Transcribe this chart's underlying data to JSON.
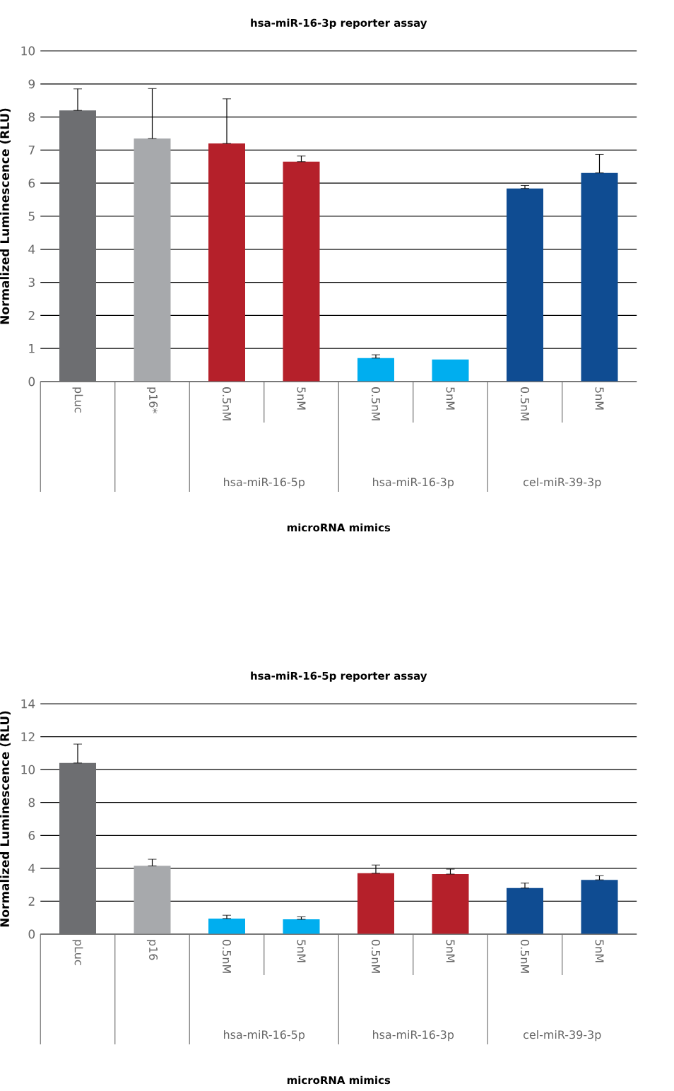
{
  "chart_data": [
    {
      "type": "bar",
      "title": "hsa-miR-16-3p reporter assay",
      "ylabel": "Normalized Luminescence (RLU)",
      "xlabel": "microRNA mimics",
      "categories": [
        "pLuc",
        "p16*",
        "0.5nM",
        "5nM",
        "0.5nM",
        "5nM",
        "0.5nM",
        "5nM"
      ],
      "values": [
        8.2,
        7.35,
        7.2,
        6.65,
        0.71,
        0.67,
        5.84,
        6.31
      ],
      "errors": [
        [
          8.2,
          8.85
        ],
        [
          7.35,
          8.86
        ],
        [
          7.2,
          8.55
        ],
        [
          6.65,
          6.82
        ],
        [
          0.71,
          0.81
        ],
        null,
        [
          5.84,
          5.93
        ],
        [
          6.31,
          6.87
        ]
      ],
      "colors": [
        "#6d6e71",
        "#a7a9ac",
        "#b5202a",
        "#b5202a",
        "#00aeef",
        "#00aeef",
        "#0f4c92",
        "#0f4c92"
      ],
      "ylim": [
        0,
        10
      ],
      "yticks": [
        0,
        1,
        2,
        3,
        4,
        5,
        6,
        7,
        8,
        9,
        10
      ],
      "grid": "y",
      "annotations": [
        "hsa-miR-16-5p",
        "hsa-miR-16-3p",
        "cel-miR-39-3p"
      ]
    },
    {
      "type": "bar",
      "title": "hsa-miR-16-5p reporter assay",
      "ylabel": "Normalized Luminescence (RLU)",
      "xlabel": "microRNA mimics",
      "categories": [
        "pLuc",
        "p16",
        "0.5nM",
        "5nM",
        "0.5nM",
        "5nM",
        "0.5nM",
        "5nM"
      ],
      "values": [
        10.4,
        4.15,
        0.95,
        0.9,
        3.7,
        3.65,
        2.8,
        3.3
      ],
      "errors": [
        [
          10.4,
          11.55
        ],
        [
          4.15,
          4.55
        ],
        [
          0.95,
          1.15
        ],
        [
          0.9,
          1.05
        ],
        [
          3.7,
          4.2
        ],
        [
          3.65,
          3.95
        ],
        [
          2.8,
          3.1
        ],
        [
          3.3,
          3.55
        ]
      ],
      "colors": [
        "#6d6e71",
        "#a7a9ac",
        "#00aeef",
        "#00aeef",
        "#b5202a",
        "#b5202a",
        "#0f4c92",
        "#0f4c92"
      ],
      "ylim": [
        0,
        14
      ],
      "yticks": [
        0,
        2,
        4,
        6,
        8,
        10,
        12,
        14
      ],
      "grid": "y",
      "annotations": [
        "hsa-miR-16-5p",
        "hsa-miR-16-3p",
        "cel-miR-39-3p"
      ]
    }
  ]
}
